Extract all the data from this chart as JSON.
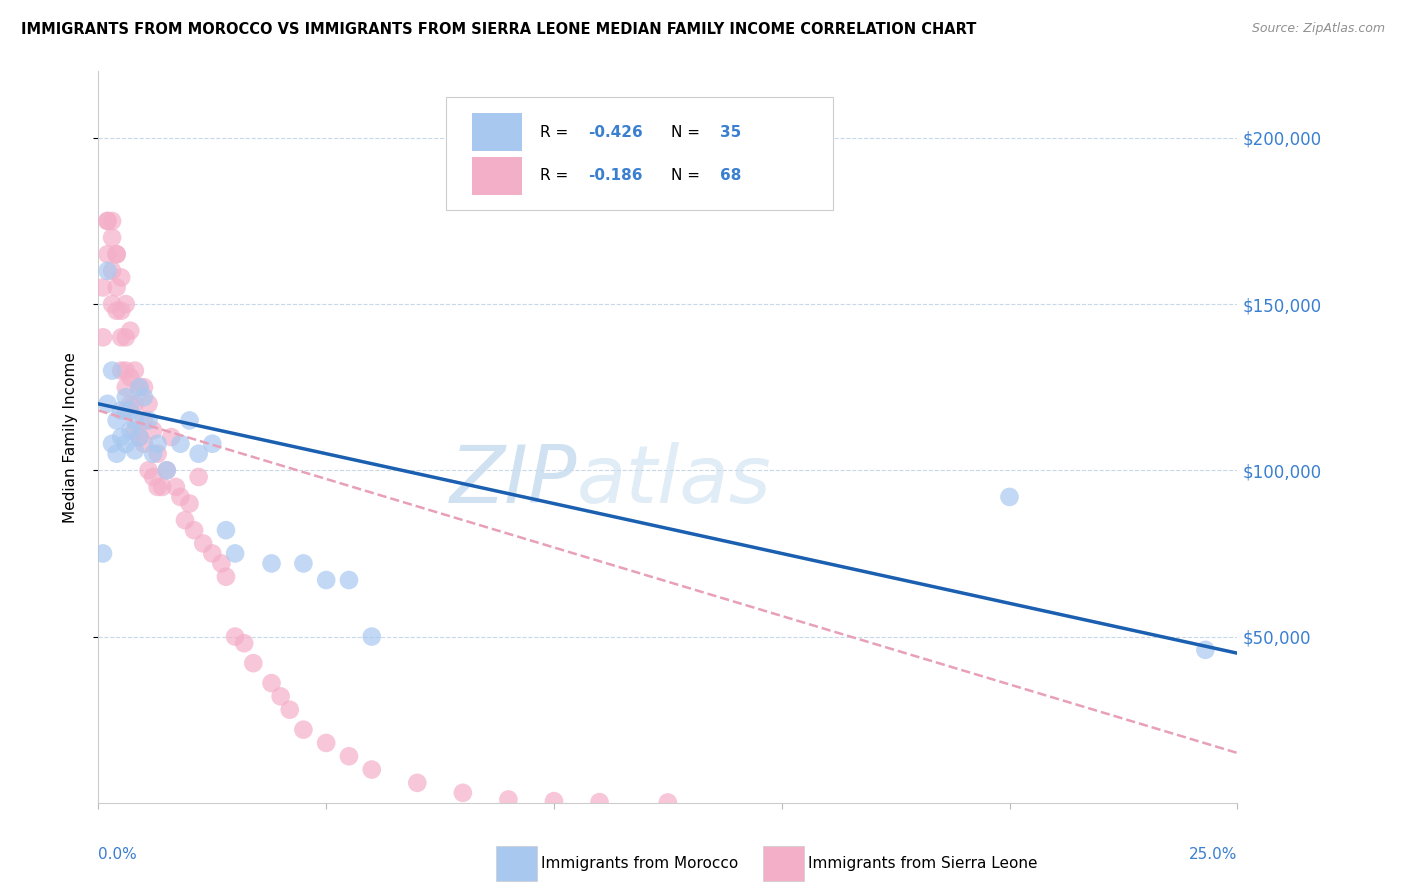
{
  "title": "IMMIGRANTS FROM MOROCCO VS IMMIGRANTS FROM SIERRA LEONE MEDIAN FAMILY INCOME CORRELATION CHART",
  "source": "Source: ZipAtlas.com",
  "ylabel": "Median Family Income",
  "ytick_labels": [
    "$50,000",
    "$100,000",
    "$150,000",
    "$200,000"
  ],
  "ytick_values": [
    50000,
    100000,
    150000,
    200000
  ],
  "xlim": [
    0.0,
    0.25
  ],
  "ylim": [
    0,
    220000
  ],
  "color_morocco": "#a8c8f0",
  "color_sierraleone": "#f4afc8",
  "line_morocco": "#1a5fb0",
  "line_sierraleone": "#e8a0b8",
  "morocco_line_x0": 0.0,
  "morocco_line_y0": 120000,
  "morocco_line_x1": 0.25,
  "morocco_line_y1": 45000,
  "sl_line_x0": 0.0,
  "sl_line_y0": 118000,
  "sl_line_x1": 0.25,
  "sl_line_y1": 15000,
  "watermark_zip": "ZIP",
  "watermark_atlas": "atlas",
  "morocco_pts_x": [
    0.001,
    0.002,
    0.002,
    0.003,
    0.003,
    0.004,
    0.004,
    0.005,
    0.005,
    0.006,
    0.006,
    0.007,
    0.007,
    0.008,
    0.008,
    0.009,
    0.009,
    0.01,
    0.011,
    0.012,
    0.013,
    0.015,
    0.018,
    0.02,
    0.022,
    0.025,
    0.028,
    0.03,
    0.038,
    0.045,
    0.05,
    0.055,
    0.06,
    0.2,
    0.243
  ],
  "morocco_pts_y": [
    75000,
    120000,
    160000,
    108000,
    130000,
    105000,
    115000,
    110000,
    118000,
    108000,
    122000,
    112000,
    118000,
    106000,
    115000,
    110000,
    125000,
    122000,
    115000,
    105000,
    108000,
    100000,
    108000,
    115000,
    105000,
    108000,
    82000,
    75000,
    72000,
    72000,
    67000,
    67000,
    50000,
    92000,
    46000
  ],
  "sl_pts_x": [
    0.001,
    0.001,
    0.002,
    0.002,
    0.002,
    0.003,
    0.003,
    0.003,
    0.003,
    0.004,
    0.004,
    0.004,
    0.004,
    0.005,
    0.005,
    0.005,
    0.005,
    0.006,
    0.006,
    0.006,
    0.006,
    0.006,
    0.007,
    0.007,
    0.007,
    0.008,
    0.008,
    0.008,
    0.009,
    0.009,
    0.01,
    0.01,
    0.01,
    0.011,
    0.011,
    0.012,
    0.012,
    0.013,
    0.013,
    0.014,
    0.015,
    0.016,
    0.017,
    0.018,
    0.019,
    0.02,
    0.021,
    0.022,
    0.023,
    0.025,
    0.027,
    0.028,
    0.03,
    0.032,
    0.034,
    0.038,
    0.04,
    0.042,
    0.045,
    0.05,
    0.055,
    0.06,
    0.07,
    0.08,
    0.09,
    0.1,
    0.11,
    0.125
  ],
  "sl_pts_y": [
    140000,
    155000,
    175000,
    165000,
    175000,
    170000,
    160000,
    175000,
    150000,
    165000,
    155000,
    165000,
    148000,
    158000,
    140000,
    148000,
    130000,
    150000,
    140000,
    125000,
    130000,
    118000,
    142000,
    128000,
    120000,
    130000,
    120000,
    112000,
    125000,
    110000,
    125000,
    115000,
    108000,
    120000,
    100000,
    112000,
    98000,
    105000,
    95000,
    95000,
    100000,
    110000,
    95000,
    92000,
    85000,
    90000,
    82000,
    98000,
    78000,
    75000,
    72000,
    68000,
    50000,
    48000,
    42000,
    36000,
    32000,
    28000,
    22000,
    18000,
    14000,
    10000,
    6000,
    3000,
    1000,
    500,
    200,
    100
  ]
}
